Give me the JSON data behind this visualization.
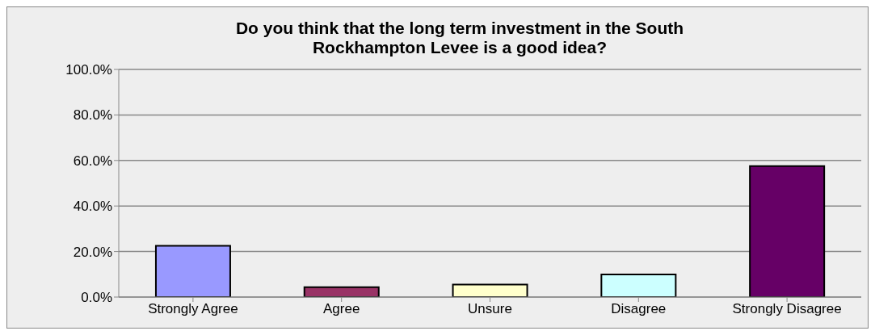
{
  "chart_data": {
    "type": "bar",
    "title": "Do you think that the long term investment in the South Rockhampton Levee is a good idea?",
    "categories": [
      "Strongly Agree",
      "Agree",
      "Unsure",
      "Disagree",
      "Strongly Disagree"
    ],
    "values": [
      22.5,
      4.3,
      5.5,
      9.9,
      57.5
    ],
    "colors": [
      "#9999ff",
      "#993366",
      "#ffffcc",
      "#ccffff",
      "#660066"
    ],
    "ylim": [
      0,
      100
    ],
    "yticks": [
      {
        "value": 0,
        "label": "0.0%"
      },
      {
        "value": 20,
        "label": "20.0%"
      },
      {
        "value": 40,
        "label": "40.0%"
      },
      {
        "value": 60,
        "label": "60.0%"
      },
      {
        "value": 80,
        "label": "80.0%"
      },
      {
        "value": 100,
        "label": "100.0%"
      }
    ],
    "grid": "y"
  }
}
